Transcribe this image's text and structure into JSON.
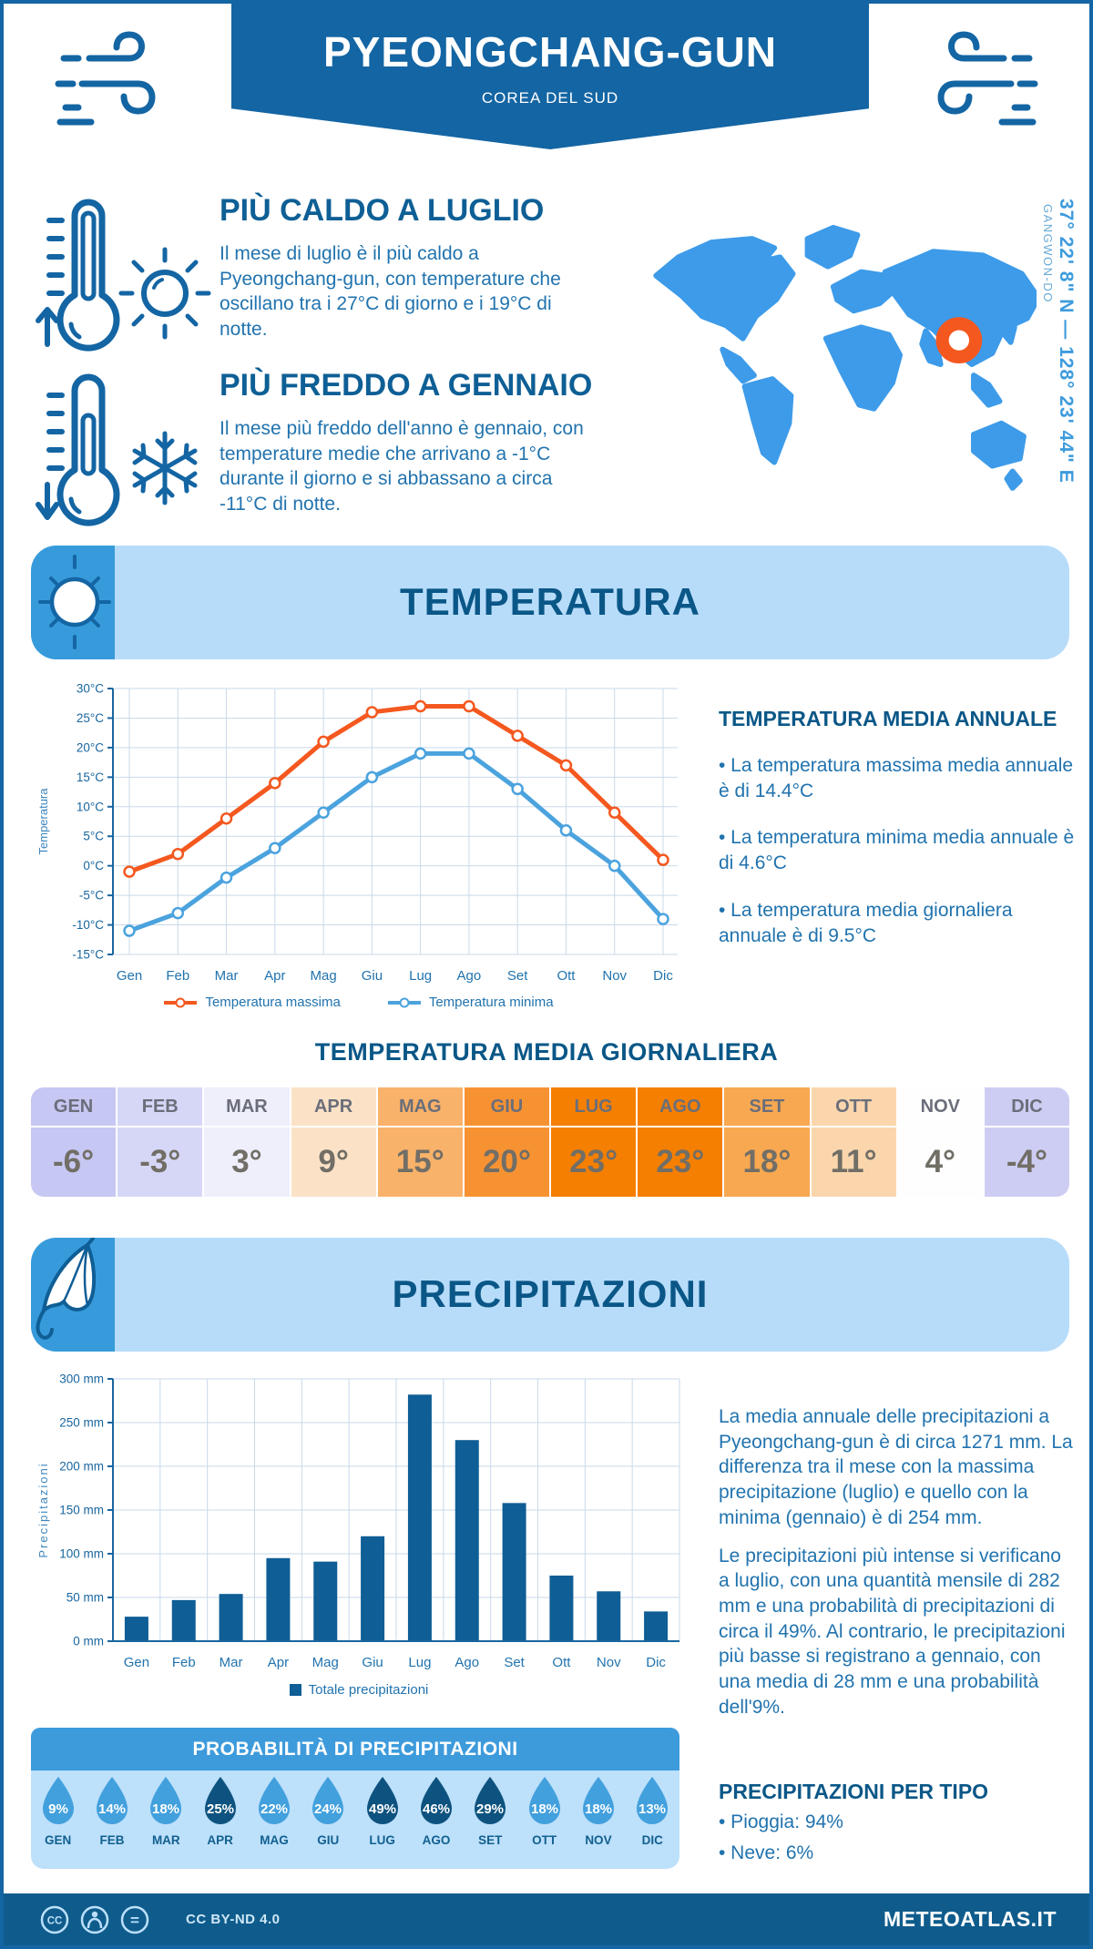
{
  "header": {
    "title": "PYEONGCHANG-GUN",
    "subtitle": "COREA DEL SUD"
  },
  "location": {
    "coordinates": "37° 22' 8\" N — 128° 23' 44\" E",
    "region": "GANGWON-DO"
  },
  "highlights": [
    {
      "title": "PIÙ CALDO A LUGLIO",
      "text": "Il mese di luglio è il più caldo a Pyeongchang-gun, con temperature che oscillano tra i 27°C di giorno e i 19°C di notte."
    },
    {
      "title": "PIÙ FREDDO A GENNAIO",
      "text": "Il mese più freddo dell'anno è gennaio, con temperature medie che arrivano a -1°C durante il giorno e si abbassano a circa -11°C di notte."
    }
  ],
  "sections": {
    "temperature": "TEMPERATURA",
    "precipitation": "PRECIPITAZIONI"
  },
  "chart_data": [
    {
      "type": "line",
      "categories": [
        "Gen",
        "Feb",
        "Mar",
        "Apr",
        "Mag",
        "Giu",
        "Lug",
        "Ago",
        "Set",
        "Ott",
        "Nov",
        "Dic"
      ],
      "series": [
        {
          "name": "Temperatura massima",
          "color": "#F4581F",
          "values": [
            -1,
            2,
            8,
            14,
            21,
            26,
            27,
            27,
            22,
            17,
            9,
            1
          ]
        },
        {
          "name": "Temperatura minima",
          "color": "#4BA3DE",
          "values": [
            -11,
            -8,
            -2,
            3,
            9,
            15,
            19,
            19,
            13,
            6,
            0,
            -9
          ]
        }
      ],
      "ylabel": "Temperatura",
      "ylim": [
        -15,
        30
      ],
      "ystep": 5,
      "yunit": "°C",
      "grid": true,
      "legend_position": "bottom"
    },
    {
      "type": "bar",
      "categories": [
        "Gen",
        "Feb",
        "Mar",
        "Apr",
        "Mag",
        "Giu",
        "Lug",
        "Ago",
        "Set",
        "Ott",
        "Nov",
        "Dic"
      ],
      "values": [
        28,
        47,
        54,
        95,
        91,
        120,
        282,
        230,
        158,
        75,
        57,
        34
      ],
      "color": "#0F5E96",
      "legend": "Totale precipitazioni",
      "ylabel": "Precipitazioni",
      "ylim": [
        0,
        300
      ],
      "ystep": 50,
      "yunit": " mm",
      "grid": true,
      "legend_position": "bottom"
    }
  ],
  "annual": {
    "heading": "TEMPERATURA MEDIA ANNUALE",
    "bullets": [
      "• La temperatura massima media annuale è di 14.4°C",
      "• La temperatura minima media annuale è di 4.6°C",
      "• La temperatura media giornaliera annuale è di 9.5°C"
    ]
  },
  "daily": {
    "heading": "TEMPERATURA MEDIA GIORNALIERA",
    "months": [
      {
        "label": "GEN",
        "value": "-6°",
        "bg": "#C6C7F2"
      },
      {
        "label": "FEB",
        "value": "-3°",
        "bg": "#D6D7F7"
      },
      {
        "label": "MAR",
        "value": "3°",
        "bg": "#EEEFFB"
      },
      {
        "label": "APR",
        "value": "9°",
        "bg": "#FBE2C7"
      },
      {
        "label": "MAG",
        "value": "15°",
        "bg": "#F9B269"
      },
      {
        "label": "GIU",
        "value": "20°",
        "bg": "#F79233"
      },
      {
        "label": "LUG",
        "value": "23°",
        "bg": "#F57F00"
      },
      {
        "label": "AGO",
        "value": "23°",
        "bg": "#F57F00"
      },
      {
        "label": "SET",
        "value": "18°",
        "bg": "#F8A851"
      },
      {
        "label": "OTT",
        "value": "11°",
        "bg": "#FBD6AD"
      },
      {
        "label": "NOV",
        "value": "4°",
        "bg": "#FEFEFE"
      },
      {
        "label": "DIC",
        "value": "-4°",
        "bg": "#CDCDF4"
      }
    ]
  },
  "precip_text": {
    "p1": "La media annuale delle precipitazioni a Pyeongchang-gun è di circa 1271 mm. La differenza tra il mese con la massima precipitazione (luglio) e quello con la minima (gennaio) è di 254 mm.",
    "p2": "Le precipitazioni più intense si verificano a luglio, con una quantità mensile di 282 mm e una probabilità di precipitazioni di circa il 49%. Al contrario, le precipitazioni più basse si registrano a gennaio, con una media di 28 mm e una probabilità dell'9%."
  },
  "probability": {
    "heading": "PROBABILITÀ DI PRECIPITAZIONI",
    "items": [
      {
        "month": "GEN",
        "value": "9%",
        "dark": false
      },
      {
        "month": "FEB",
        "value": "14%",
        "dark": false
      },
      {
        "month": "MAR",
        "value": "18%",
        "dark": false
      },
      {
        "month": "APR",
        "value": "25%",
        "dark": true
      },
      {
        "month": "MAG",
        "value": "22%",
        "dark": false
      },
      {
        "month": "GIU",
        "value": "24%",
        "dark": false
      },
      {
        "month": "LUG",
        "value": "49%",
        "dark": true
      },
      {
        "month": "AGO",
        "value": "46%",
        "dark": true
      },
      {
        "month": "SET",
        "value": "29%",
        "dark": true
      },
      {
        "month": "OTT",
        "value": "18%",
        "dark": false
      },
      {
        "month": "NOV",
        "value": "18%",
        "dark": false
      },
      {
        "month": "DIC",
        "value": "13%",
        "dark": false
      }
    ]
  },
  "per_tipo": {
    "heading": "PRECIPITAZIONI PER TIPO",
    "bullets": [
      "• Pioggia: 94%",
      "• Neve: 6%"
    ]
  },
  "footer": {
    "license": "CC BY-ND 4.0",
    "site": "METEOATLAS.IT"
  },
  "colors": {
    "brand": "#1465A3",
    "section_title": "#0A5787",
    "body_text": "#2173AE",
    "banner_bg": "#B7DCFA",
    "icon_square": "#379BDB",
    "map": "#3D9BE9",
    "marker": "#F4581F",
    "grid": "#C9D9EA",
    "axis": "#19669E",
    "bar": "#0F5E96",
    "drop_light": "#42A0DD",
    "drop_dark": "#0E537F",
    "prob_header": "#3D9BDC",
    "prob_panel": "#BDE0FB",
    "footer_bg": "#0F5C8C"
  },
  "icons": {
    "wind": "wind-swirl",
    "warm": "thermometer-up + sun",
    "cold": "thermometer-down + snowflake",
    "temperature_section": "sun",
    "precipitation_section": "umbrella",
    "probability": "water-drop",
    "footer": "cc / person / nd"
  }
}
